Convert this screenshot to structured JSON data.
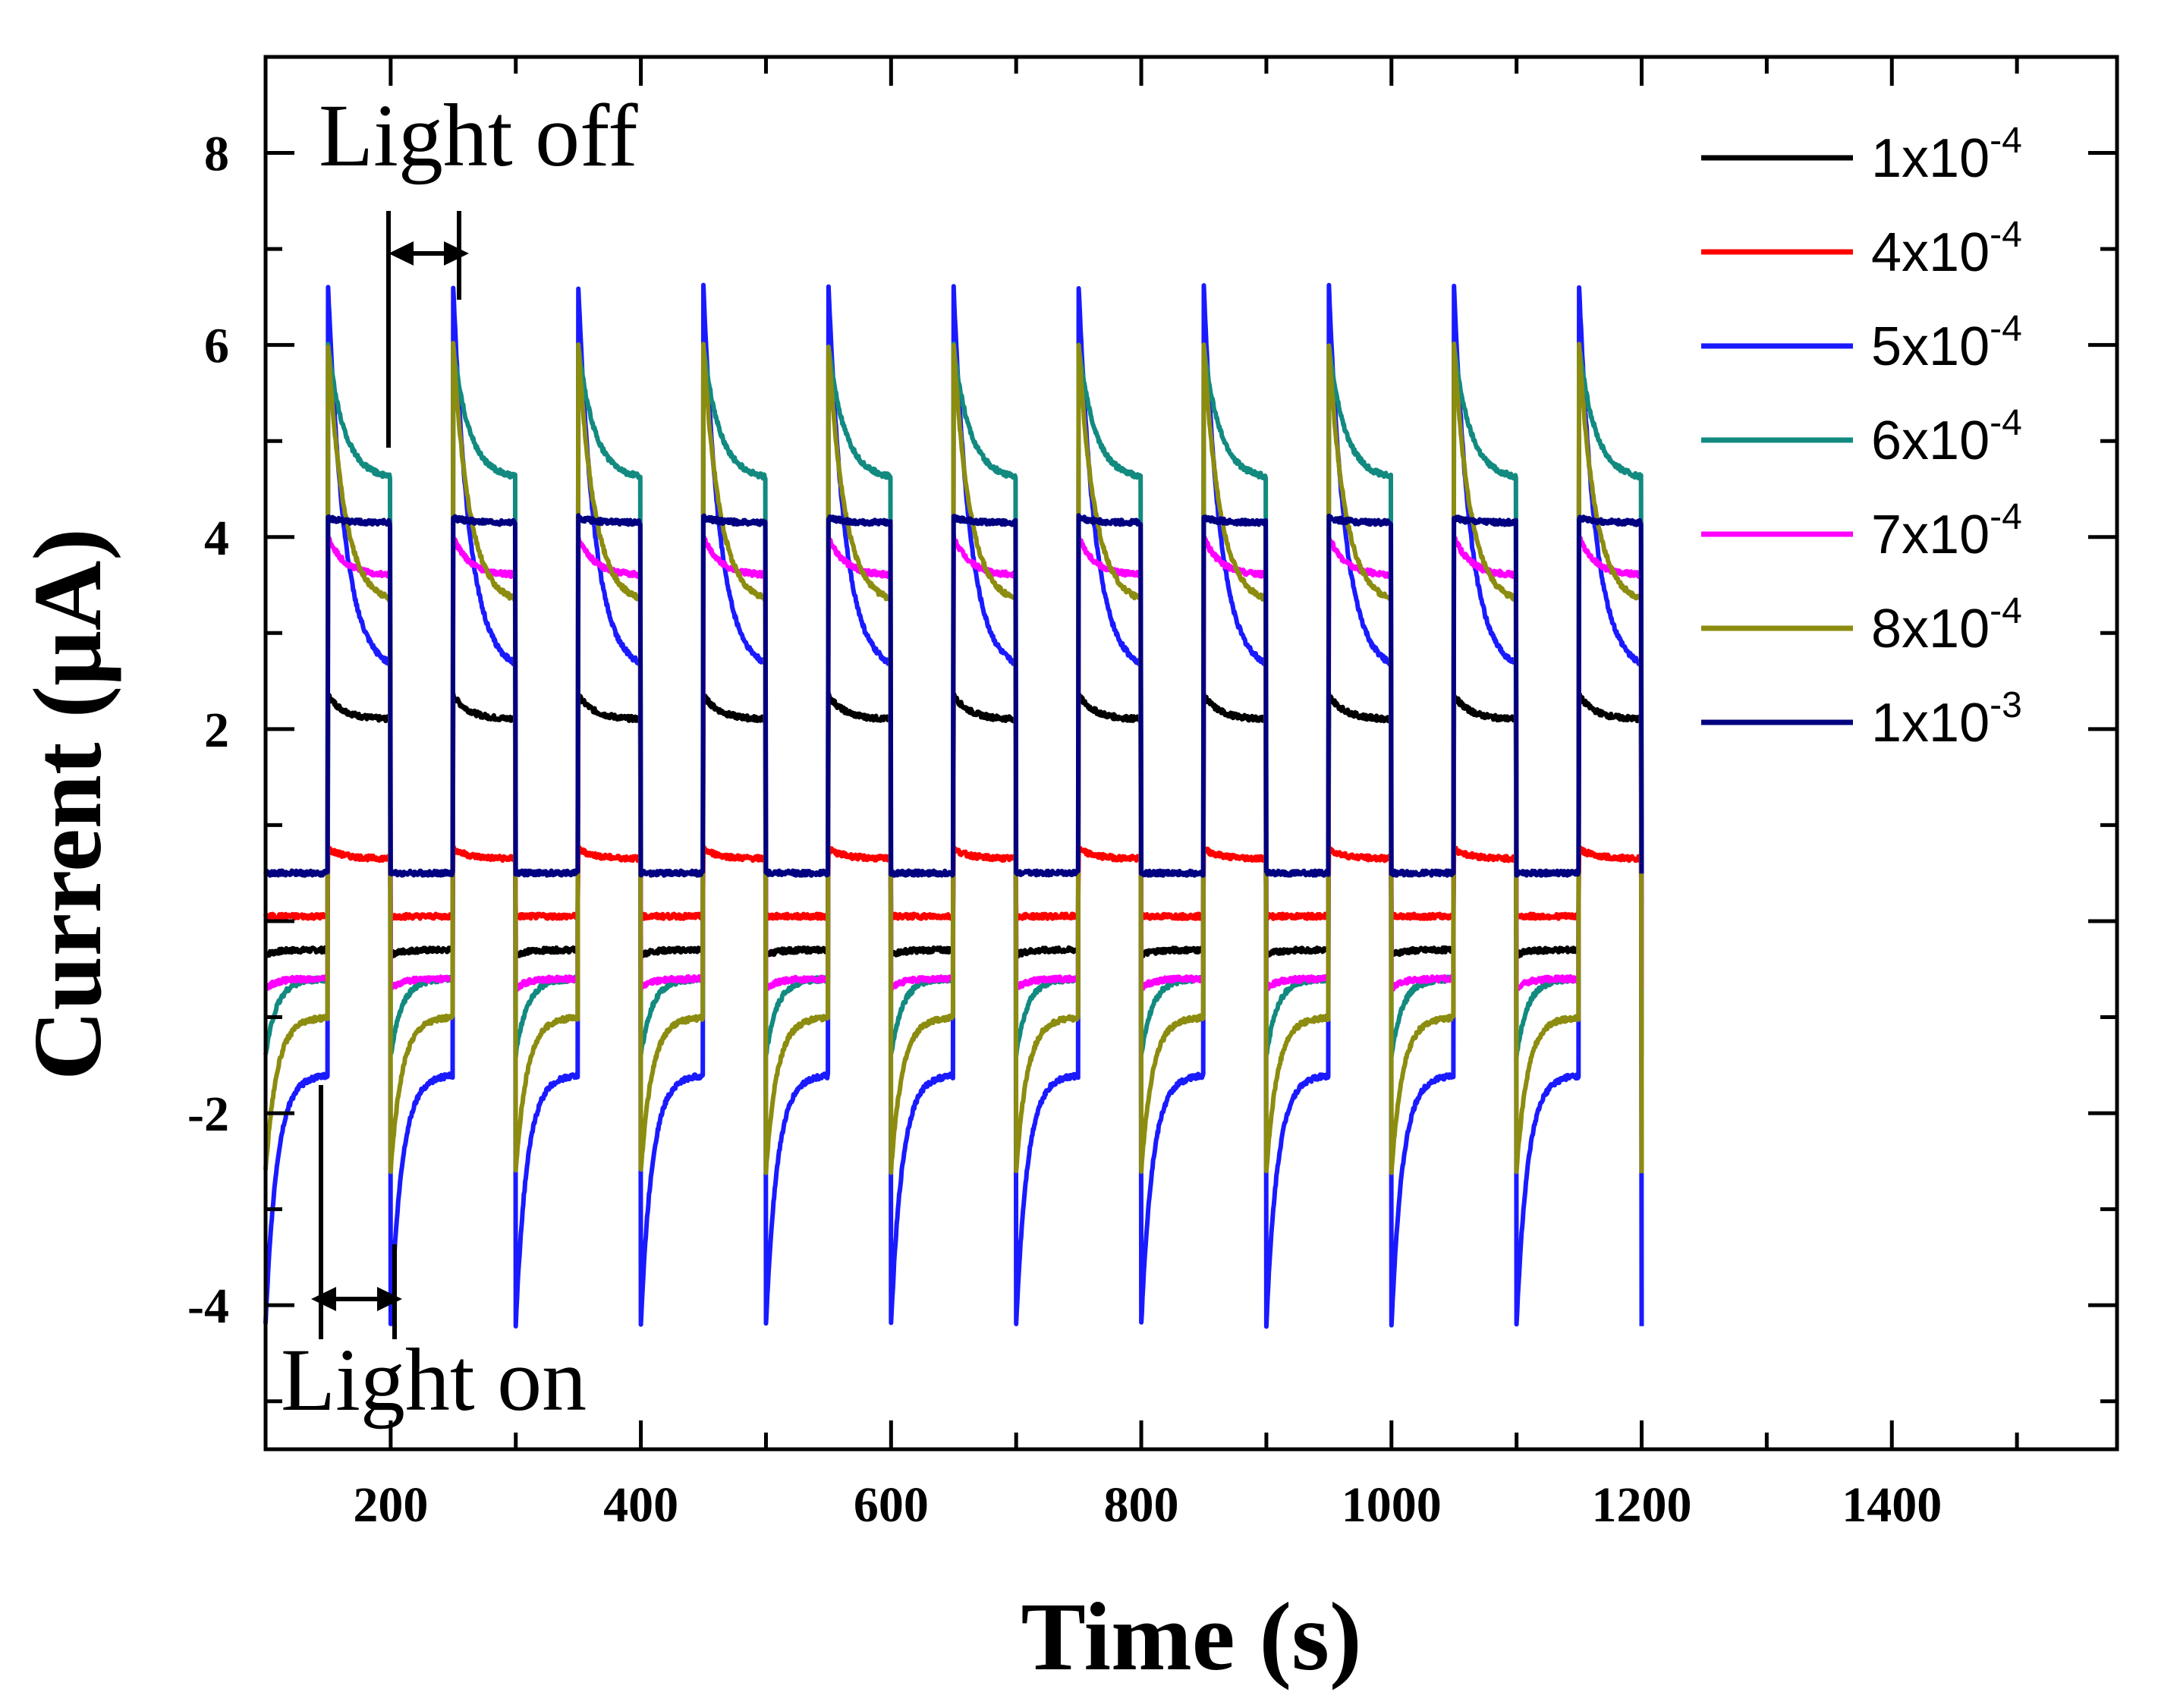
{
  "chart_data": {
    "type": "line",
    "title": "",
    "xlabel": "Time  (s)",
    "ylabel": "Current (μA)",
    "xlim": [
      100,
      1580
    ],
    "ylim": [
      -5.5,
      9.0
    ],
    "xticks": [
      200,
      400,
      600,
      800,
      1000,
      1200,
      1400
    ],
    "xtick_labels": [
      "200",
      "400",
      "600",
      "800",
      "1000",
      "1200",
      "1400"
    ],
    "yticks": [
      -4,
      -2,
      2,
      4,
      6,
      8
    ],
    "ytick_labels": [
      "-4",
      "-2",
      "2",
      "4",
      "6",
      "8"
    ],
    "time_range": [
      100,
      1200
    ],
    "cycle_start": 150,
    "period_s": 100,
    "on_duration_s": 50,
    "legend_position": "top-right",
    "series": [
      {
        "name": "1x10",
        "exp": "-4",
        "color": "#000000",
        "on_peak": 2.35,
        "on_end": 2.1,
        "off_level": -0.3,
        "off_dip": -0.35
      },
      {
        "name": "4x10",
        "exp": "-4",
        "color": "#ff0000",
        "on_peak": 0.75,
        "on_end": 0.65,
        "off_level": 0.05,
        "off_dip": 0.05
      },
      {
        "name": "5x10",
        "exp": "-4",
        "color": "#1a1aff",
        "on_peak": 6.6,
        "on_end": 2.6,
        "off_level": -1.6,
        "off_dip": -4.2
      },
      {
        "name": "6x10",
        "exp": "-4",
        "color": "#128a80",
        "on_peak": 6.0,
        "on_end": 4.6,
        "off_level": -0.6,
        "off_dip": -1.4
      },
      {
        "name": "7x10",
        "exp": "-4",
        "color": "#ff00ff",
        "on_peak": 4.0,
        "on_end": 3.6,
        "off_level": -0.6,
        "off_dip": -0.7
      },
      {
        "name": "8x10",
        "exp": "-4",
        "color": "#8c8c10",
        "on_peak": 6.0,
        "on_end": 3.3,
        "off_level": -1.0,
        "off_dip": -2.6
      },
      {
        "name": "1x10",
        "exp": "-3",
        "color": "#000080",
        "on_peak": 4.2,
        "on_end": 4.15,
        "off_level": 0.5,
        "off_dip": 0.5
      }
    ],
    "annotations": [
      {
        "text": "Light off",
        "x": 200,
        "y": 8
      },
      {
        "text": "Light on",
        "x": 150,
        "y": -5
      }
    ]
  }
}
